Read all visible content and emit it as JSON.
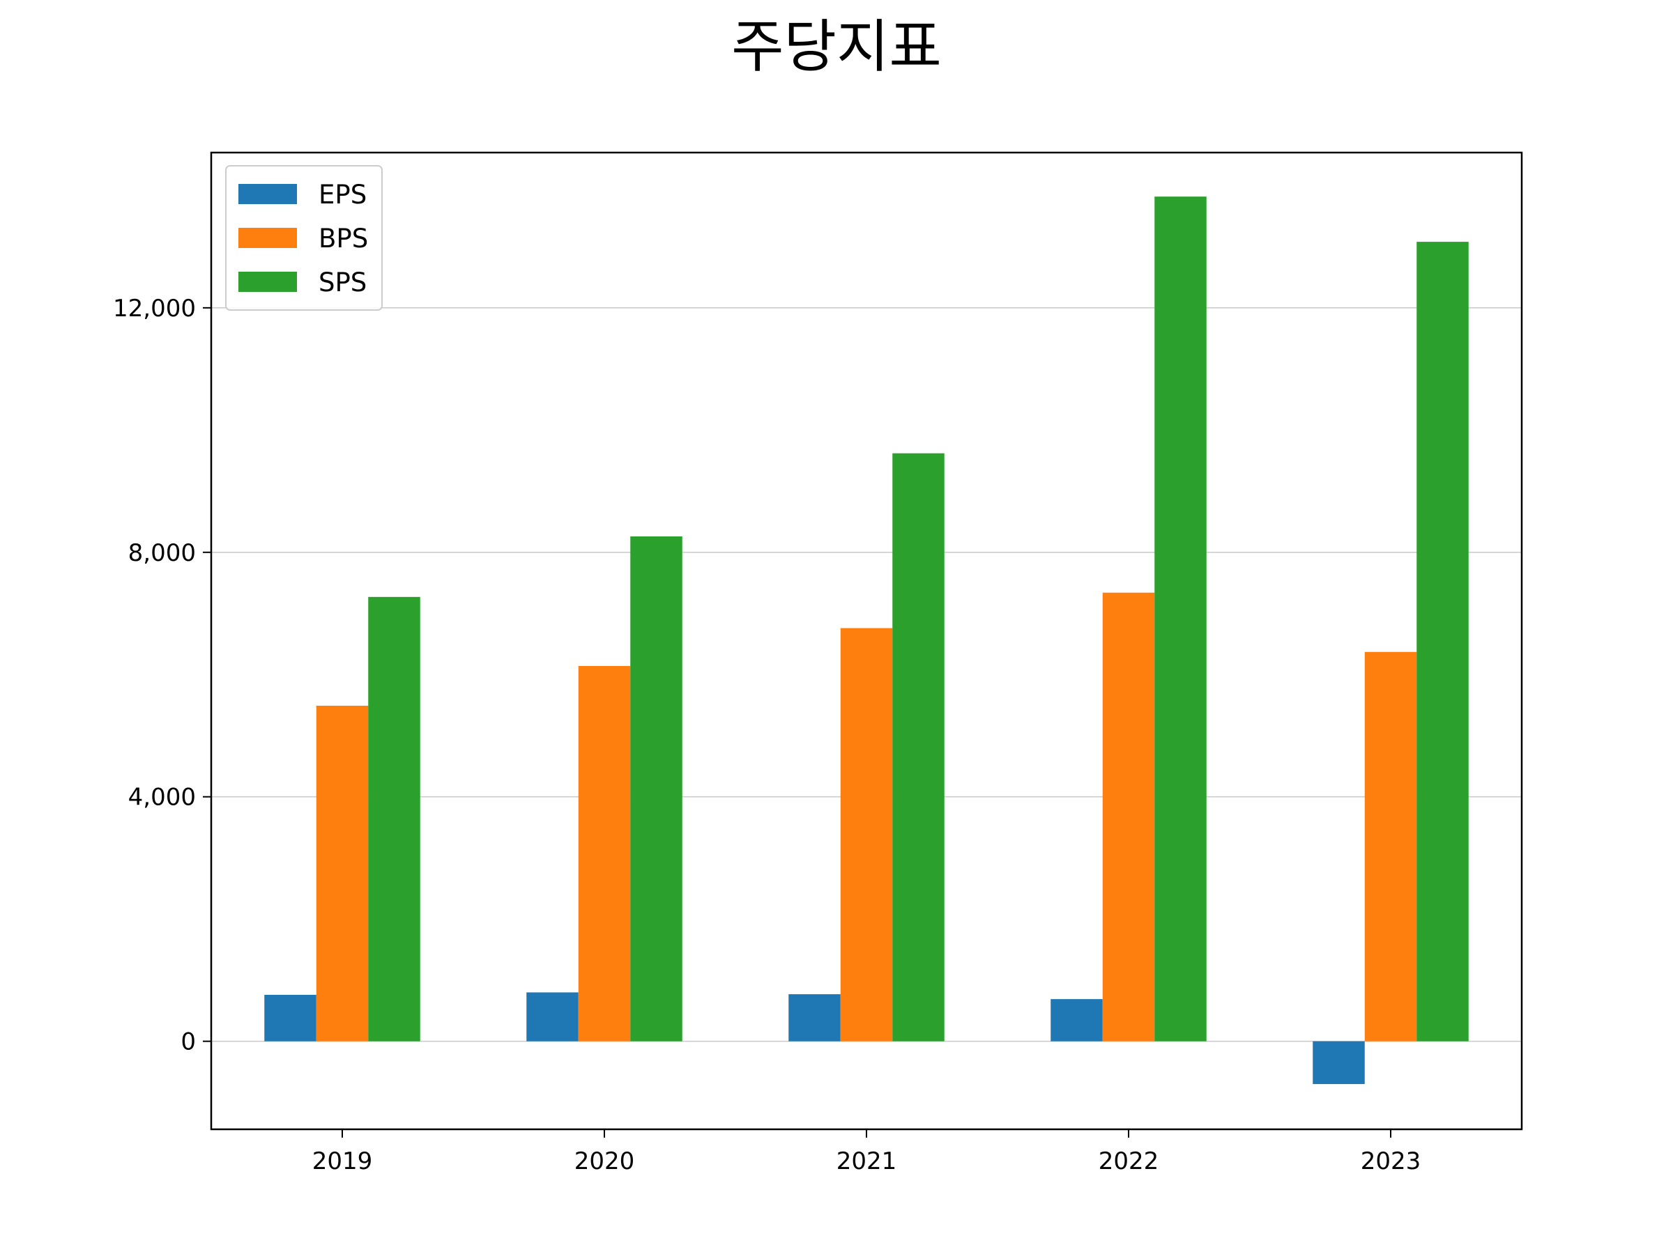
{
  "chart_data": {
    "type": "bar",
    "title": "주당지표",
    "xlabel": "",
    "ylabel": "",
    "categories": [
      "2019",
      "2020",
      "2021",
      "2022",
      "2023"
    ],
    "series": [
      {
        "name": "EPS",
        "color": "#1f77b4",
        "values": [
          760,
          800,
          770,
          690,
          -700
        ]
      },
      {
        "name": "BPS",
        "color": "#ff7f0e",
        "values": [
          5490,
          6140,
          6760,
          7340,
          6370
        ]
      },
      {
        "name": "SPS",
        "color": "#2ca02c",
        "values": [
          7270,
          8260,
          9620,
          13820,
          13080
        ]
      }
    ],
    "ylim": [
      -1440,
      14540
    ],
    "yticks": [
      0,
      4000,
      8000,
      12000
    ],
    "ytick_labels": [
      "0",
      "4,000",
      "8,000",
      "12,000"
    ],
    "grid": "y",
    "legend": "top-left"
  }
}
